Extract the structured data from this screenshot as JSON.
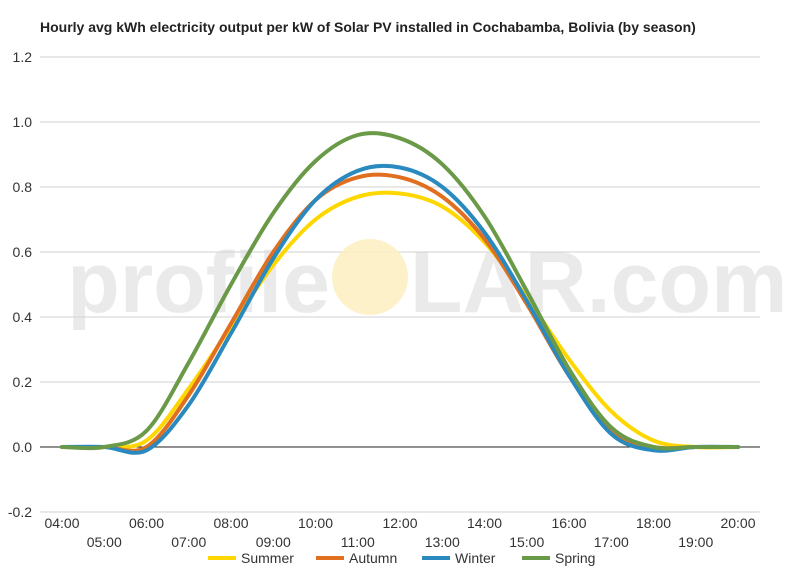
{
  "chart_data": {
    "type": "line",
    "title": "Hourly avg kWh electricity output per kW of Solar PV installed in Cochabamba, Bolivia (by season)",
    "xlabel": "",
    "ylabel": "",
    "ylim": [
      -0.2,
      1.2
    ],
    "yticks": [
      "1.2",
      "1.0",
      "0.8",
      "0.6",
      "0.4",
      "0.2",
      "0.0",
      "-0.2"
    ],
    "x": [
      "04:00",
      "05:00",
      "06:00",
      "07:00",
      "08:00",
      "09:00",
      "10:00",
      "11:00",
      "12:00",
      "13:00",
      "14:00",
      "15:00",
      "16:00",
      "17:00",
      "18:00",
      "19:00",
      "20:00"
    ],
    "series": [
      {
        "name": "Summer",
        "color": "#ffd700",
        "values": [
          0,
          0,
          0.02,
          0.18,
          0.37,
          0.56,
          0.7,
          0.77,
          0.78,
          0.74,
          0.63,
          0.46,
          0.27,
          0.11,
          0.02,
          0,
          0
        ]
      },
      {
        "name": "Autumn",
        "color": "#e07020",
        "values": [
          0,
          0,
          0,
          0.16,
          0.38,
          0.6,
          0.76,
          0.83,
          0.83,
          0.77,
          0.64,
          0.44,
          0.22,
          0.05,
          0,
          0,
          0
        ]
      },
      {
        "name": "Winter",
        "color": "#2a8abf",
        "values": [
          0,
          0,
          -0.01,
          0.13,
          0.35,
          0.58,
          0.76,
          0.85,
          0.86,
          0.8,
          0.66,
          0.45,
          0.22,
          0.04,
          -0.01,
          0,
          0
        ]
      },
      {
        "name": "Spring",
        "color": "#6a9a48",
        "values": [
          0,
          0,
          0.05,
          0.26,
          0.5,
          0.72,
          0.88,
          0.96,
          0.95,
          0.87,
          0.71,
          0.48,
          0.24,
          0.06,
          0,
          0,
          0
        ]
      }
    ],
    "grid": true,
    "legend": "bottom"
  },
  "watermark": {
    "left": "profile",
    "right": "LAR.com"
  }
}
